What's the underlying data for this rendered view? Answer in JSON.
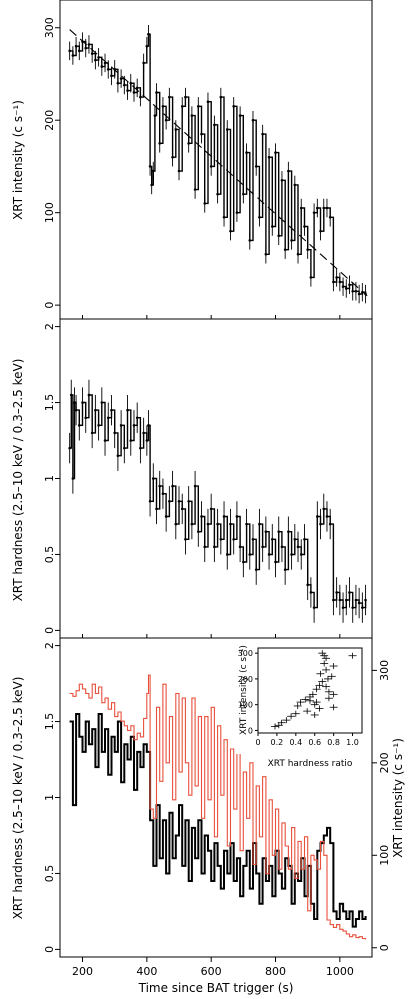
{
  "chart_data": [
    {
      "panel": "top",
      "type": "line",
      "ylabel": "XRT intensity (c s⁻¹)",
      "ylim": [
        -15,
        330
      ],
      "yticks": [
        0,
        100,
        200,
        300
      ],
      "x": [
        160,
        170,
        180,
        190,
        200,
        210,
        220,
        230,
        240,
        250,
        260,
        270,
        280,
        290,
        300,
        310,
        320,
        330,
        340,
        350,
        360,
        370,
        380,
        390,
        400,
        405,
        410,
        415,
        420,
        425,
        430,
        440,
        450,
        460,
        470,
        480,
        490,
        500,
        510,
        520,
        530,
        540,
        550,
        560,
        570,
        580,
        590,
        600,
        610,
        620,
        630,
        640,
        650,
        660,
        670,
        680,
        690,
        700,
        710,
        720,
        730,
        740,
        750,
        760,
        770,
        780,
        790,
        800,
        810,
        820,
        830,
        840,
        850,
        860,
        870,
        880,
        890,
        900,
        910,
        920,
        930,
        940,
        950,
        960,
        970,
        980,
        990,
        1000,
        1010,
        1020,
        1030,
        1040,
        1050,
        1060,
        1070,
        1080
      ],
      "y": [
        275,
        270,
        280,
        275,
        285,
        278,
        282,
        272,
        265,
        268,
        258,
        262,
        255,
        248,
        255,
        240,
        245,
        238,
        232,
        240,
        230,
        235,
        225,
        262,
        280,
        293,
        150,
        130,
        145,
        205,
        230,
        175,
        215,
        200,
        225,
        160,
        190,
        145,
        215,
        225,
        175,
        205,
        125,
        215,
        185,
        110,
        220,
        150,
        195,
        120,
        225,
        95,
        190,
        80,
        215,
        100,
        205,
        120,
        165,
        70,
        200,
        150,
        95,
        185,
        55,
        160,
        85,
        165,
        75,
        135,
        60,
        145,
        70,
        130,
        55,
        105,
        85,
        60,
        30,
        100,
        105,
        80,
        105,
        105,
        95,
        25,
        30,
        25,
        20,
        18,
        22,
        15,
        15,
        12,
        14,
        12
      ],
      "err": 10,
      "trend": {
        "x": [
          160,
          1085
        ],
        "y": [
          298,
          10
        ]
      }
    },
    {
      "panel": "middle",
      "type": "line",
      "ylabel": "XRT hardness (2.5–10 keV / 0.3–2.5 keV)",
      "ylim": [
        -0.05,
        2.05
      ],
      "yticks": [
        "0",
        "0.5",
        "1",
        "1.5",
        "2"
      ],
      "x": [
        160,
        165,
        170,
        175,
        180,
        190,
        200,
        210,
        220,
        230,
        240,
        250,
        260,
        270,
        280,
        290,
        300,
        310,
        320,
        330,
        340,
        350,
        360,
        370,
        380,
        390,
        400,
        405,
        410,
        420,
        430,
        440,
        450,
        460,
        470,
        480,
        490,
        500,
        510,
        520,
        530,
        540,
        550,
        560,
        570,
        580,
        590,
        600,
        610,
        620,
        630,
        640,
        650,
        660,
        670,
        680,
        690,
        700,
        710,
        720,
        730,
        740,
        750,
        760,
        770,
        780,
        790,
        800,
        810,
        820,
        830,
        840,
        850,
        860,
        870,
        880,
        890,
        900,
        910,
        920,
        930,
        940,
        950,
        960,
        970,
        980,
        990,
        1000,
        1010,
        1020,
        1030,
        1040,
        1050,
        1060,
        1070,
        1080
      ],
      "y": [
        1.2,
        1.55,
        1.0,
        1.5,
        1.45,
        1.35,
        1.5,
        1.4,
        1.55,
        1.3,
        1.45,
        1.35,
        1.5,
        1.25,
        1.4,
        1.45,
        1.3,
        1.15,
        1.35,
        1.2,
        1.45,
        1.25,
        1.35,
        1.4,
        1.2,
        1.3,
        1.25,
        1.35,
        0.85,
        1.0,
        0.8,
        0.95,
        0.9,
        0.75,
        0.85,
        0.95,
        0.7,
        0.85,
        0.8,
        0.6,
        0.85,
        0.7,
        0.95,
        0.65,
        0.75,
        0.55,
        0.7,
        0.8,
        0.55,
        0.7,
        0.6,
        0.75,
        0.5,
        0.7,
        0.6,
        0.75,
        0.55,
        0.45,
        0.7,
        0.5,
        0.6,
        0.4,
        0.7,
        0.55,
        0.65,
        0.5,
        0.6,
        0.45,
        0.65,
        0.55,
        0.4,
        0.65,
        0.5,
        0.6,
        0.55,
        0.5,
        0.6,
        0.3,
        0.25,
        0.15,
        0.75,
        0.7,
        0.8,
        0.75,
        0.7,
        0.2,
        0.25,
        0.2,
        0.15,
        0.2,
        0.25,
        0.15,
        0.2,
        0.18,
        0.15,
        0.2
      ],
      "err": 0.1
    },
    {
      "panel": "bottom",
      "type": "line",
      "xlabel": "Time since BAT trigger (s)",
      "ylabel": "XRT hardness (2.5–10 keV / 0.3–2.5 keV)",
      "ylabel_right": "XRT intensity (c s⁻¹)",
      "xlim": [
        130,
        1100
      ],
      "xticks": [
        200,
        400,
        600,
        800,
        1000
      ],
      "ylim": [
        -0.05,
        2.05
      ],
      "yticks": [
        "0",
        "0.5",
        "1",
        "1.5",
        "2"
      ],
      "ylim_right": [
        -10,
        335
      ],
      "yticks_right": [
        0,
        100,
        200,
        300
      ],
      "series": [
        {
          "color": "#000000",
          "axis": "left",
          "x": [
            160,
            170,
            180,
            190,
            200,
            210,
            220,
            230,
            240,
            250,
            260,
            270,
            280,
            290,
            300,
            310,
            320,
            330,
            340,
            350,
            360,
            370,
            380,
            390,
            400,
            410,
            420,
            430,
            440,
            450,
            460,
            470,
            480,
            490,
            500,
            510,
            520,
            530,
            540,
            550,
            560,
            570,
            580,
            590,
            600,
            610,
            620,
            630,
            640,
            650,
            660,
            670,
            680,
            690,
            700,
            710,
            720,
            730,
            740,
            750,
            760,
            770,
            780,
            790,
            800,
            810,
            820,
            830,
            840,
            850,
            860,
            870,
            880,
            890,
            900,
            910,
            920,
            930,
            940,
            950,
            960,
            970,
            980,
            990,
            1000,
            1010,
            1020,
            1030,
            1040,
            1050,
            1060,
            1070,
            1080
          ],
          "y": [
            1.5,
            0.95,
            1.55,
            1.4,
            1.3,
            1.5,
            1.35,
            1.45,
            1.2,
            1.55,
            1.3,
            1.45,
            1.15,
            1.4,
            1.3,
            1.5,
            1.1,
            1.35,
            1.25,
            1.4,
            1.05,
            1.3,
            1.2,
            1.35,
            1.3,
            0.85,
            0.55,
            0.95,
            0.6,
            0.85,
            0.5,
            0.9,
            0.6,
            0.75,
            0.95,
            0.55,
            0.85,
            0.45,
            0.8,
            0.6,
            0.85,
            0.5,
            0.75,
            0.65,
            0.45,
            0.7,
            0.55,
            0.4,
            0.65,
            0.5,
            0.7,
            0.45,
            0.6,
            0.35,
            0.55,
            0.65,
            0.4,
            0.7,
            0.5,
            0.3,
            0.6,
            0.45,
            0.55,
            0.35,
            0.65,
            0.5,
            0.4,
            0.6,
            0.55,
            0.3,
            0.5,
            0.45,
            0.6,
            0.35,
            0.55,
            0.3,
            0.2,
            0.65,
            0.7,
            0.75,
            0.8,
            0.7,
            0.25,
            0.2,
            0.3,
            0.25,
            0.2,
            0.25,
            0.15,
            0.2,
            0.25,
            0.2,
            0.22
          ]
        },
        {
          "color": "#e8503c",
          "axis": "right",
          "x": [
            160,
            170,
            180,
            190,
            200,
            210,
            220,
            230,
            240,
            250,
            260,
            270,
            280,
            290,
            300,
            310,
            320,
            330,
            340,
            350,
            360,
            370,
            380,
            390,
            400,
            405,
            410,
            420,
            430,
            440,
            450,
            460,
            470,
            480,
            490,
            500,
            510,
            520,
            530,
            540,
            550,
            560,
            570,
            580,
            590,
            600,
            610,
            620,
            630,
            640,
            650,
            660,
            670,
            680,
            690,
            700,
            710,
            720,
            730,
            740,
            750,
            760,
            770,
            780,
            790,
            800,
            810,
            820,
            830,
            840,
            850,
            860,
            870,
            880,
            890,
            900,
            910,
            920,
            930,
            940,
            950,
            960,
            970,
            980,
            990,
            1000,
            1010,
            1020,
            1030,
            1040,
            1050,
            1060,
            1070,
            1080
          ],
          "y": [
            275,
            272,
            278,
            285,
            280,
            275,
            270,
            285,
            275,
            282,
            265,
            270,
            258,
            265,
            250,
            255,
            245,
            240,
            235,
            240,
            225,
            232,
            228,
            248,
            275,
            295,
            150,
            140,
            260,
            180,
            285,
            200,
            250,
            160,
            275,
            190,
            270,
            200,
            165,
            270,
            175,
            250,
            140,
            250,
            160,
            260,
            120,
            240,
            165,
            225,
            110,
            215,
            150,
            230,
            105,
            190,
            140,
            200,
            90,
            175,
            120,
            185,
            80,
            160,
            100,
            150,
            85,
            135,
            110,
            85,
            130,
            75,
            115,
            85,
            120,
            40,
            100,
            95,
            85,
            115,
            100,
            30,
            25,
            22,
            25,
            20,
            18,
            15,
            12,
            14,
            11,
            12,
            10,
            9
          ]
        }
      ],
      "inset": {
        "type": "scatter",
        "xlabel": "XRT hardness ratio",
        "ylabel": "XRT intensity (c s⁻¹)",
        "xlim": [
          0,
          1.1
        ],
        "xticks": [
          "0",
          "0.2",
          "0.4",
          "0.6",
          "0.8",
          "1.0"
        ],
        "ylim": [
          -10,
          320
        ],
        "yticks": [
          0,
          100,
          200,
          300
        ],
        "x": [
          0.18,
          0.22,
          0.25,
          0.3,
          0.35,
          0.4,
          0.42,
          0.45,
          0.5,
          0.52,
          0.55,
          0.58,
          0.6,
          0.62,
          0.62,
          0.65,
          0.66,
          0.68,
          0.7,
          0.72,
          0.72,
          0.74,
          0.75,
          0.78,
          0.8,
          0.7,
          0.68,
          0.72,
          0.75,
          0.8,
          1.0,
          0.8,
          0.65,
          0.6,
          0.55
        ],
        "y": [
          15,
          20,
          30,
          40,
          55,
          65,
          95,
          110,
          120,
          75,
          130,
          140,
          100,
          110,
          160,
          175,
          220,
          190,
          260,
          235,
          280,
          200,
          150,
          210,
          250,
          290,
          300,
          170,
          125,
          90,
          290,
          140,
          85,
          60,
          115
        ]
      }
    }
  ]
}
